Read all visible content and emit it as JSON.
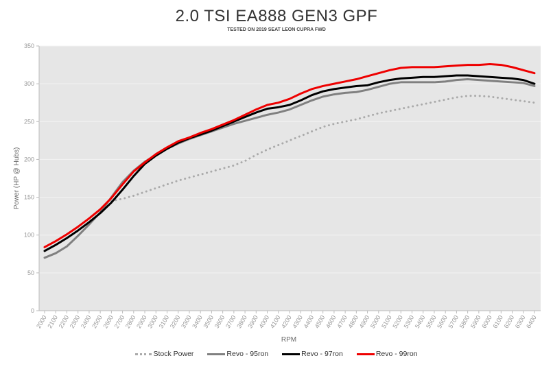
{
  "chart_data": {
    "type": "line",
    "title": "2.0 TSI EA888 GEN3 GPF",
    "subtitle": "TESTED ON 2019 SEAT LEON CUPRA FWD",
    "xlabel": "RPM",
    "ylabel": "Power (HP @ Hubs)",
    "ylim": [
      0,
      350
    ],
    "yticks": [
      0,
      50,
      100,
      150,
      200,
      250,
      300,
      350
    ],
    "grid": true,
    "legend_position": "bottom",
    "x": [
      2000,
      2100,
      2200,
      2300,
      2400,
      2500,
      2600,
      2700,
      2800,
      2900,
      3000,
      3100,
      3200,
      3300,
      3400,
      3500,
      3600,
      3700,
      3800,
      3900,
      4000,
      4100,
      4200,
      4300,
      4400,
      4500,
      4600,
      4700,
      4800,
      4900,
      5000,
      5100,
      5200,
      5300,
      5400,
      5500,
      5600,
      5700,
      5800,
      5900,
      6000,
      6100,
      6200,
      6300,
      6400
    ],
    "series": [
      {
        "name": "Stock Power",
        "color": "#aaaaaa",
        "style": "dotted",
        "values": [
          null,
          null,
          null,
          null,
          null,
          null,
          145,
          148,
          152,
          157,
          162,
          167,
          172,
          176,
          180,
          184,
          188,
          192,
          198,
          206,
          213,
          219,
          225,
          231,
          237,
          243,
          247,
          250,
          253,
          257,
          261,
          264,
          267,
          270,
          273,
          276,
          279,
          282,
          284,
          284,
          283,
          281,
          279,
          277,
          275
        ]
      },
      {
        "name": "Revo - 95ron",
        "color": "#808080",
        "style": "solid",
        "values": [
          70,
          76,
          85,
          99,
          114,
          130,
          150,
          170,
          185,
          197,
          206,
          214,
          221,
          227,
          232,
          237,
          242,
          247,
          251,
          255,
          259,
          262,
          266,
          272,
          278,
          283,
          286,
          288,
          289,
          292,
          296,
          300,
          302,
          302,
          302,
          302,
          303,
          305,
          306,
          305,
          304,
          303,
          302,
          301,
          297
        ]
      },
      {
        "name": "Revo - 97ron",
        "color": "#000000",
        "style": "solid",
        "values": [
          79,
          87,
          96,
          106,
          117,
          129,
          143,
          160,
          178,
          194,
          205,
          214,
          222,
          228,
          233,
          238,
          244,
          250,
          256,
          262,
          267,
          269,
          272,
          278,
          285,
          290,
          293,
          295,
          297,
          298,
          302,
          305,
          307,
          308,
          309,
          309,
          310,
          311,
          311,
          310,
          309,
          308,
          307,
          305,
          300
        ]
      },
      {
        "name": "Revo - 99ron",
        "color": "#ee0000",
        "style": "solid",
        "values": [
          84,
          92,
          101,
          111,
          122,
          134,
          149,
          167,
          184,
          196,
          207,
          216,
          224,
          229,
          235,
          240,
          246,
          252,
          259,
          266,
          272,
          275,
          280,
          287,
          293,
          297,
          300,
          303,
          306,
          310,
          314,
          318,
          321,
          322,
          322,
          322,
          323,
          324,
          325,
          325,
          326,
          325,
          322,
          318,
          314
        ]
      }
    ]
  }
}
